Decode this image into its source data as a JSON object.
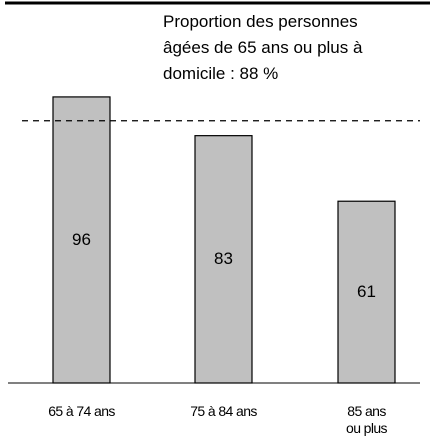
{
  "chart_data": {
    "type": "bar",
    "annotation": "Proportion des personnes\nâgées de 65 ans ou plus à\ndomicile : 88 %",
    "categories": [
      "65 à 74 ans",
      "75 à 84 ans",
      "85 ans\nou plus"
    ],
    "values": [
      96,
      83,
      61
    ],
    "color": "#c0c0c0",
    "reference_line": 88,
    "ylim": [
      0,
      100
    ]
  }
}
